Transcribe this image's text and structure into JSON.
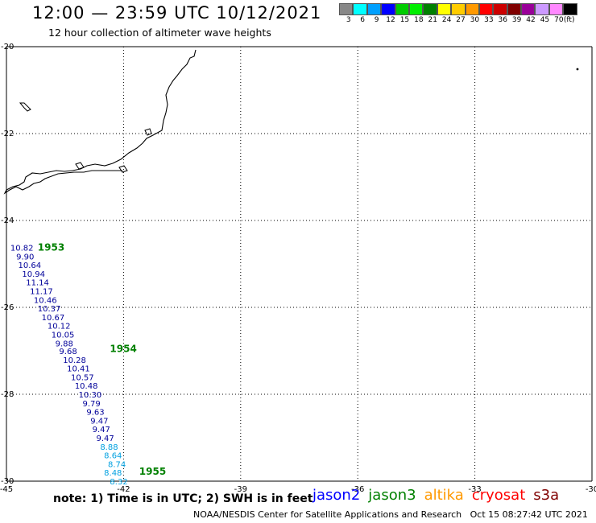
{
  "header": {
    "title": "12:00 — 23:59 UTC 10/12/2021",
    "subtitle": "12 hour collection of altimeter wave heights"
  },
  "legend": {
    "colors": [
      "#888888",
      "#00ffff",
      "#00a0ff",
      "#0000ff",
      "#00cc00",
      "#00ee00",
      "#008000",
      "#ffff00",
      "#ffcc00",
      "#ff9900",
      "#ff0000",
      "#cc0000",
      "#800000",
      "#990099",
      "#cc99ff",
      "#ff88ff",
      "#000000"
    ],
    "labels": [
      "3",
      "6",
      "9",
      "12",
      "15",
      "18",
      "21",
      "24",
      "27",
      "30",
      "33",
      "36",
      "39",
      "42",
      "45",
      "70",
      "(ft)"
    ]
  },
  "map": {
    "lon_ticks": [
      "-45",
      "-42",
      "-39",
      "-36",
      "-33",
      "-30"
    ],
    "lat_ticks": [
      "-20",
      "-22",
      "-24",
      "-26",
      "-28",
      "-30"
    ],
    "time_labels": [
      {
        "text": "1953",
        "lon": -44.2,
        "lat": -24.62
      },
      {
        "text": "1954",
        "lon": -42.35,
        "lat": -26.95
      },
      {
        "text": "1955",
        "lon": -41.6,
        "lat": -29.78
      }
    ],
    "wave_heights": [
      {
        "v": "10.82",
        "lon": -44.9,
        "lat": -24.62,
        "c": "#000099"
      },
      {
        "v": "9.90",
        "lon": -44.75,
        "lat": -24.82,
        "c": "#000099"
      },
      {
        "v": "10.64",
        "lon": -44.7,
        "lat": -25.02,
        "c": "#000099"
      },
      {
        "v": "10.94",
        "lon": -44.6,
        "lat": -25.22,
        "c": "#000099"
      },
      {
        "v": "11.14",
        "lon": -44.5,
        "lat": -25.42,
        "c": "#000099"
      },
      {
        "v": "11.17",
        "lon": -44.4,
        "lat": -25.62,
        "c": "#000099"
      },
      {
        "v": "10.46",
        "lon": -44.3,
        "lat": -25.82,
        "c": "#000099"
      },
      {
        "v": "10.37",
        "lon": -44.2,
        "lat": -26.02,
        "c": "#000099"
      },
      {
        "v": "10.67",
        "lon": -44.1,
        "lat": -26.22,
        "c": "#000099"
      },
      {
        "v": "10.12",
        "lon": -43.95,
        "lat": -26.42,
        "c": "#000099"
      },
      {
        "v": "10.05",
        "lon": -43.85,
        "lat": -26.62,
        "c": "#000099"
      },
      {
        "v": "9.88",
        "lon": -43.75,
        "lat": -26.82,
        "c": "#000099"
      },
      {
        "v": "9.68",
        "lon": -43.65,
        "lat": -27.0,
        "c": "#000099"
      },
      {
        "v": "10.28",
        "lon": -43.55,
        "lat": -27.2,
        "c": "#000099"
      },
      {
        "v": "10.41",
        "lon": -43.45,
        "lat": -27.4,
        "c": "#000099"
      },
      {
        "v": "10.57",
        "lon": -43.35,
        "lat": -27.6,
        "c": "#000099"
      },
      {
        "v": "10.48",
        "lon": -43.25,
        "lat": -27.8,
        "c": "#000099"
      },
      {
        "v": "10.30",
        "lon": -43.15,
        "lat": -28.0,
        "c": "#000099"
      },
      {
        "v": "9.79",
        "lon": -43.05,
        "lat": -28.2,
        "c": "#000099"
      },
      {
        "v": "9.63",
        "lon": -42.95,
        "lat": -28.4,
        "c": "#000099"
      },
      {
        "v": "9.47",
        "lon": -42.85,
        "lat": -28.6,
        "c": "#000099"
      },
      {
        "v": "9.47",
        "lon": -42.8,
        "lat": -28.8,
        "c": "#000099"
      },
      {
        "v": "9.47",
        "lon": -42.7,
        "lat": -29.0,
        "c": "#000099"
      },
      {
        "v": "8.88",
        "lon": -42.6,
        "lat": -29.2,
        "c": "#00a0e0"
      },
      {
        "v": "8.64",
        "lon": -42.5,
        "lat": -29.4,
        "c": "#00a0e0"
      },
      {
        "v": "8.74",
        "lon": -42.4,
        "lat": -29.6,
        "c": "#00a0e0"
      },
      {
        "v": "8.48",
        "lon": -42.5,
        "lat": -29.8,
        "c": "#00a0e0"
      },
      {
        "v": "8.32",
        "lon": -42.35,
        "lat": -30.0,
        "c": "#00a0e0"
      }
    ]
  },
  "footer": {
    "note": "note: 1) Time is in UTC; 2) SWH is in feet",
    "satellites": [
      {
        "name": "jason2",
        "color": "#0000ff"
      },
      {
        "name": "jason3",
        "color": "#008000"
      },
      {
        "name": "altika",
        "color": "#ff9900"
      },
      {
        "name": "cryosat",
        "color": "#ff0000"
      },
      {
        "name": "s3a",
        "color": "#800000"
      }
    ],
    "credit": "NOAA/NESDIS Center for Satellite Applications and Research",
    "timestamp": "Oct 15 08:27:42 UTC 2021"
  }
}
